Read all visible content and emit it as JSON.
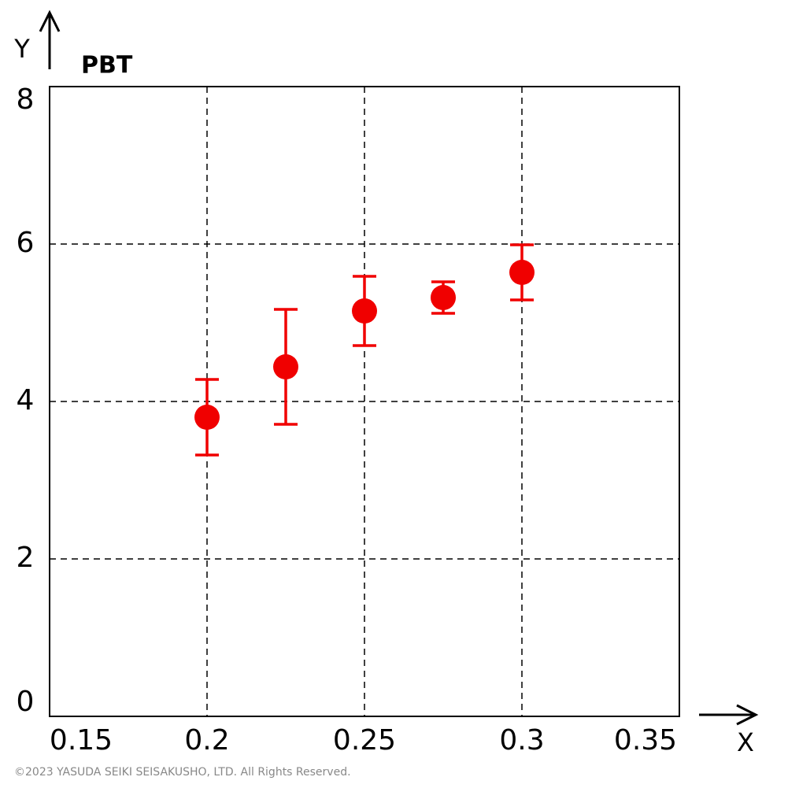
{
  "chart_data": {
    "type": "errorbar-scatter",
    "y_label": "Y",
    "title": "PBT",
    "x_label": "X",
    "x": [
      0.2,
      0.225,
      0.25,
      0.275,
      0.3
    ],
    "values": [
      3.8,
      4.44,
      5.15,
      5.32,
      5.64
    ],
    "errors": [
      0.48,
      0.73,
      0.44,
      0.2,
      0.35
    ],
    "color": "#f00000",
    "xlim": [
      0.15,
      0.35
    ],
    "xticks": [
      0.15,
      0.2,
      0.25,
      0.3,
      0.35
    ],
    "ylim": [
      0,
      8
    ],
    "yticks": [
      0,
      2,
      4,
      6,
      8
    ],
    "grid": true,
    "footer": "©2023 YASUDA SEIKI SEISAKUSHO, LTD. All Rights Reserved."
  }
}
